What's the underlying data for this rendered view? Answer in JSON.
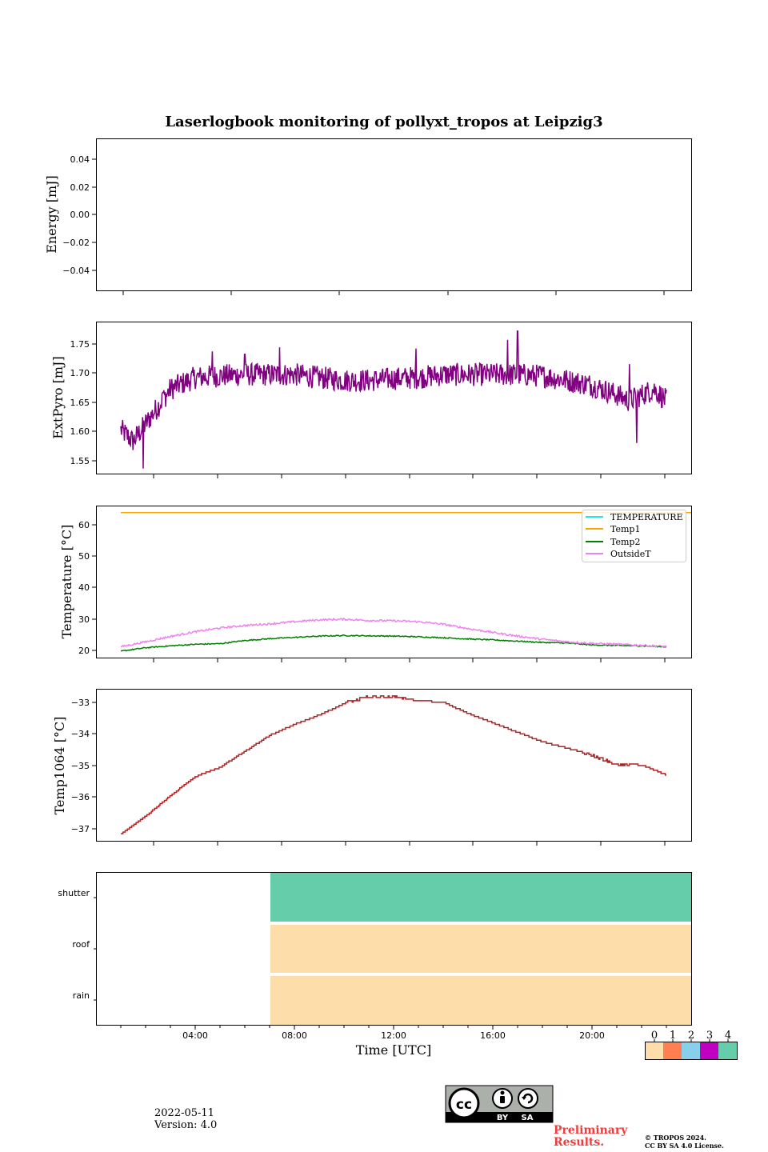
{
  "figure": {
    "title": "Laserlogbook monitoring of pollyxt_tropos at Leipzig3",
    "xlabel": "Time [UTC]",
    "x_ticks": [
      "04:00",
      "08:00",
      "12:00",
      "16:00",
      "20:00"
    ]
  },
  "footer": {
    "date": "2022-05-11",
    "version": "Version: 4.0",
    "preliminary": "Preliminary",
    "results": "Results.",
    "copyright_line1": "© TROPOS 2024.",
    "copyright_line2": "CC BY SA 4.0 License.",
    "license_badge": {
      "by": "BY",
      "sa": "SA"
    }
  },
  "chart_data": [
    {
      "type": "line",
      "title": "Energy",
      "ylabel": "Energy [mJ]",
      "ylim": [
        -0.055,
        0.055
      ],
      "y_ticks": [
        "0.04",
        "0.02",
        "0.00",
        "−0.04"
      ],
      "y_ticks_all": [
        "0.04",
        "0.02",
        "0.00",
        "−0.02",
        "−0.04"
      ],
      "series": []
    },
    {
      "type": "line",
      "ylabel": "ExtPyro [mJ]",
      "xlim_hours": [
        1.0,
        24.0
      ],
      "ylim": [
        1.528,
        1.79
      ],
      "y_ticks": [
        "1.75",
        "1.70",
        "1.65",
        "1.60",
        "1.55"
      ],
      "series": [
        {
          "name": "ExtPyro",
          "color": "#800080",
          "x_hours": [
            1.0,
            1.5,
            2.0,
            2.5,
            3.0,
            4.0,
            5.0,
            6.0,
            7.0,
            8.0,
            9.0,
            10.0,
            11.0,
            12.0,
            13.0,
            14.0,
            15.0,
            16.0,
            17.0,
            18.0,
            19.0,
            20.0,
            21.0,
            21.5,
            22.0,
            22.5,
            23.0
          ],
          "y_mean": [
            1.605,
            1.585,
            1.615,
            1.645,
            1.675,
            1.695,
            1.698,
            1.7,
            1.7,
            1.7,
            1.695,
            1.69,
            1.69,
            1.693,
            1.695,
            1.7,
            1.7,
            1.7,
            1.7,
            1.698,
            1.69,
            1.682,
            1.665,
            1.655,
            1.665,
            1.675,
            1.655
          ],
          "noise": 0.02,
          "spikes": [
            [
              1.9,
              1.538
            ],
            [
              2.7,
              1.669
            ],
            [
              4.7,
              1.74
            ],
            [
              6.0,
              1.735
            ],
            [
              7.4,
              1.747
            ],
            [
              12.9,
              1.745
            ],
            [
              16.6,
              1.76
            ],
            [
              17.0,
              1.775
            ],
            [
              21.8,
              1.582
            ],
            [
              21.5,
              1.718
            ]
          ]
        }
      ]
    },
    {
      "type": "line",
      "ylabel": "Temperature [°C]",
      "xlim_hours": [
        1.0,
        24.0
      ],
      "ylim": [
        17.5,
        66
      ],
      "y_ticks": [
        "60",
        "50",
        "40",
        "30",
        "20"
      ],
      "legend": [
        "TEMPERATURE",
        "Temp1",
        "Temp2",
        "OutsideT"
      ],
      "legend_colors": [
        "#20e8e8",
        "#ffa500",
        "#008000",
        "#ee82ee"
      ],
      "series": [
        {
          "name": "Temp1",
          "color": "#ffa500",
          "x_hours": [
            1.0,
            24.0
          ],
          "y": [
            64.0,
            64.0
          ]
        },
        {
          "name": "Temp2",
          "color": "#008000",
          "x_hours": [
            1.0,
            2.0,
            3.0,
            4.0,
            5.0,
            6.0,
            7.0,
            8.0,
            9.0,
            10.0,
            11.0,
            12.0,
            13.0,
            14.0,
            15.0,
            16.0,
            17.0,
            18.0,
            19.0,
            20.0,
            21.0,
            22.0,
            23.0
          ],
          "y": [
            19.8,
            20.9,
            21.5,
            22.0,
            22.2,
            23.2,
            23.8,
            24.2,
            24.6,
            24.8,
            24.7,
            24.6,
            24.4,
            24.1,
            23.7,
            23.4,
            23.0,
            22.6,
            22.4,
            21.8,
            21.6,
            21.5,
            21.2
          ]
        },
        {
          "name": "OutsideT",
          "color": "#ee82ee",
          "x_hours": [
            1.0,
            2.0,
            3.0,
            4.0,
            5.0,
            6.0,
            7.0,
            8.0,
            9.0,
            10.0,
            11.0,
            12.0,
            13.0,
            14.0,
            15.0,
            16.0,
            17.0,
            18.0,
            19.0,
            20.0,
            21.0,
            22.0,
            23.0
          ],
          "y": [
            21.2,
            22.8,
            24.5,
            26.0,
            27.2,
            28.0,
            28.5,
            29.2,
            29.8,
            30.0,
            29.6,
            29.5,
            29.2,
            28.4,
            27.0,
            25.8,
            24.6,
            23.6,
            22.8,
            22.3,
            22.0,
            21.7,
            21.3
          ]
        }
      ]
    },
    {
      "type": "line",
      "ylabel": "Temp1064 [°C]",
      "xlim_hours": [
        1.0,
        24.0
      ],
      "ylim": [
        -37.4,
        -32.6
      ],
      "y_ticks": [
        "−33",
        "−34",
        "−35",
        "−36",
        "−37"
      ],
      "series": [
        {
          "name": "Temp1064",
          "color": "#b22222",
          "x_hours": [
            1.0,
            2.0,
            3.0,
            4.0,
            5.0,
            6.0,
            7.0,
            8.0,
            9.0,
            10.0,
            11.0,
            12.0,
            13.0,
            14.0,
            15.0,
            16.0,
            17.0,
            18.0,
            19.0,
            20.0,
            21.0,
            22.0,
            23.0
          ],
          "y": [
            -37.15,
            -36.6,
            -35.95,
            -35.35,
            -35.05,
            -34.55,
            -34.05,
            -33.7,
            -33.4,
            -33.05,
            -32.85,
            -32.85,
            -32.95,
            -33.0,
            -33.35,
            -33.65,
            -33.95,
            -34.25,
            -34.45,
            -34.65,
            -34.95,
            -34.98,
            -35.3
          ]
        }
      ]
    },
    {
      "type": "heatmap",
      "y_categories": [
        "shutter",
        "roof",
        "rain"
      ],
      "xlim_hours": [
        0.0,
        24.0
      ],
      "x_ticks": [
        "04:00",
        "08:00",
        "12:00",
        "16:00",
        "20:00"
      ],
      "segments": [
        {
          "row": "shutter",
          "start_hour": 7.0,
          "end_hour": 24.0,
          "value": 4
        },
        {
          "row": "roof",
          "start_hour": 7.0,
          "end_hour": 24.0,
          "value": 0
        },
        {
          "row": "rain",
          "start_hour": 7.0,
          "end_hour": 24.0,
          "value": 0
        }
      ],
      "colorbar": {
        "labels": [
          "0",
          "1",
          "2",
          "3",
          "4"
        ],
        "colors": [
          "#fddeab",
          "#ff7f50",
          "#87cfeb",
          "#c000c0",
          "#66cdaa"
        ]
      }
    }
  ]
}
